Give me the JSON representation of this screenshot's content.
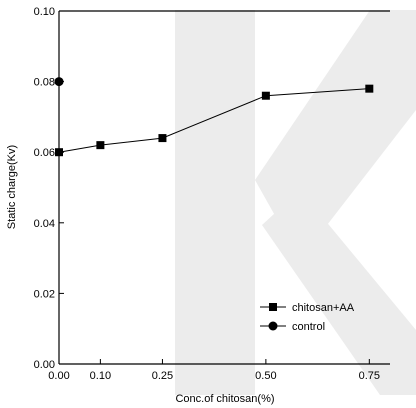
{
  "chart_data": {
    "type": "line",
    "title": "",
    "xlabel": "Conc.of chitosan(%)",
    "ylabel": "Static charge(Kv)",
    "xlim": [
      0,
      0.8
    ],
    "ylim": [
      0,
      0.1
    ],
    "x_ticks": [
      0,
      0.1,
      0.25,
      0.5,
      0.75
    ],
    "x_tick_labels": [
      "0.00",
      "0.10",
      "0.25",
      "0.50",
      "0.75"
    ],
    "y_ticks": [
      0,
      0.02,
      0.04,
      0.06,
      0.08,
      0.1
    ],
    "y_tick_labels": [
      "0.00",
      "0.02",
      "0.04",
      "0.06",
      "0.08",
      "0.10"
    ],
    "grid": false,
    "legend_position": "bottom-right",
    "series": [
      {
        "name": "chitosan+AA",
        "marker": "square",
        "color": "#000000",
        "x": [
          0,
          0.1,
          0.25,
          0.5,
          0.75
        ],
        "y": [
          0.06,
          0.062,
          0.064,
          0.076,
          0.078
        ]
      },
      {
        "name": "control",
        "marker": "circle",
        "color": "#000000",
        "x": [
          0
        ],
        "y": [
          0.08
        ]
      }
    ]
  }
}
